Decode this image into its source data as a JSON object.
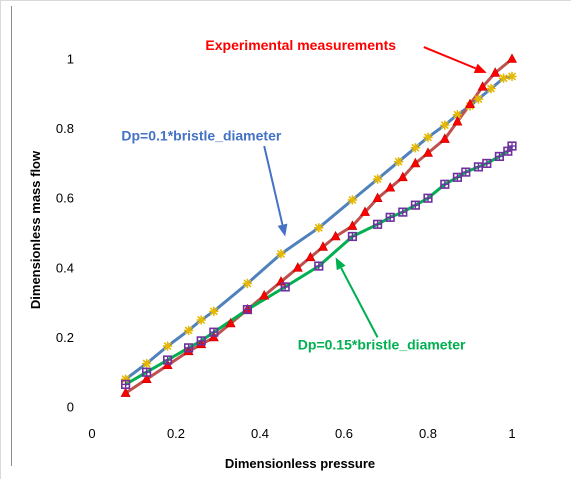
{
  "chart_data": {
    "type": "line",
    "title": "",
    "xlabel": "Dimensionless pressure",
    "ylabel": "Dimensionless mass flow",
    "xlim": [
      0,
      1.05
    ],
    "ylim": [
      0,
      1.05
    ],
    "xticks": [
      0,
      0.2,
      0.4,
      0.6,
      0.8,
      1
    ],
    "yticks": [
      0,
      0.2,
      0.4,
      0.6,
      0.8,
      1
    ],
    "xtick_labels": [
      "0",
      "0.2",
      "0.4",
      "0.6",
      "0.8",
      "1"
    ],
    "ytick_labels": [
      "0",
      "0.2",
      "0.4",
      "0.6",
      "0.8",
      "1"
    ],
    "grid": false,
    "legend": "none",
    "series": [
      {
        "color": "#4f81bd",
        "marker": "asterisk",
        "marker_color": "#e6b800",
        "x": [
          0.08,
          0.13,
          0.18,
          0.23,
          0.26,
          0.29,
          0.37,
          0.45,
          0.54,
          0.62,
          0.68,
          0.73,
          0.77,
          0.8,
          0.84,
          0.87,
          0.9,
          0.92,
          0.95,
          0.98,
          1.0
        ],
        "y": [
          0.08,
          0.125,
          0.175,
          0.22,
          0.25,
          0.275,
          0.355,
          0.44,
          0.515,
          0.595,
          0.655,
          0.705,
          0.745,
          0.775,
          0.81,
          0.84,
          0.865,
          0.885,
          0.915,
          0.945,
          0.95
        ]
      },
      {
        "color": "#c0504d",
        "marker": "triangle",
        "marker_color": "#ff0000",
        "x": [
          0.08,
          0.13,
          0.18,
          0.23,
          0.26,
          0.29,
          0.33,
          0.37,
          0.41,
          0.45,
          0.49,
          0.52,
          0.55,
          0.58,
          0.62,
          0.65,
          0.68,
          0.71,
          0.74,
          0.77,
          0.8,
          0.84,
          0.87,
          0.9,
          0.93,
          0.96,
          1.0
        ],
        "y": [
          0.04,
          0.08,
          0.12,
          0.16,
          0.18,
          0.2,
          0.24,
          0.28,
          0.32,
          0.36,
          0.4,
          0.43,
          0.46,
          0.49,
          0.52,
          0.56,
          0.6,
          0.63,
          0.66,
          0.7,
          0.73,
          0.77,
          0.82,
          0.87,
          0.92,
          0.96,
          1.0
        ]
      },
      {
        "color": "#00b050",
        "marker": "square-plus",
        "marker_color": "#7030a0",
        "x": [
          0.08,
          0.13,
          0.18,
          0.23,
          0.26,
          0.29,
          0.37,
          0.46,
          0.54,
          0.62,
          0.68,
          0.71,
          0.74,
          0.77,
          0.8,
          0.84,
          0.87,
          0.89,
          0.92,
          0.94,
          0.97,
          0.99,
          1.0
        ],
        "y": [
          0.065,
          0.1,
          0.135,
          0.17,
          0.19,
          0.215,
          0.28,
          0.345,
          0.405,
          0.49,
          0.525,
          0.545,
          0.56,
          0.58,
          0.6,
          0.64,
          0.66,
          0.675,
          0.69,
          0.7,
          0.72,
          0.735,
          0.75
        ]
      }
    ],
    "annotations": [
      {
        "text": "Experimental measurements",
        "color": "#ff0000",
        "x": 0.27,
        "y": 1.04,
        "target": [
          0.94,
          0.96
        ]
      },
      {
        "text": "Dp=0.1*bristle_diameter",
        "color": "#4472c4",
        "x": 0.07,
        "y": 0.78,
        "target": [
          0.46,
          0.49
        ]
      },
      {
        "text": "Dp=0.15*bristle_diameter",
        "color": "#00b050",
        "x": 0.49,
        "y": 0.18,
        "target": [
          0.58,
          0.43
        ]
      }
    ]
  }
}
